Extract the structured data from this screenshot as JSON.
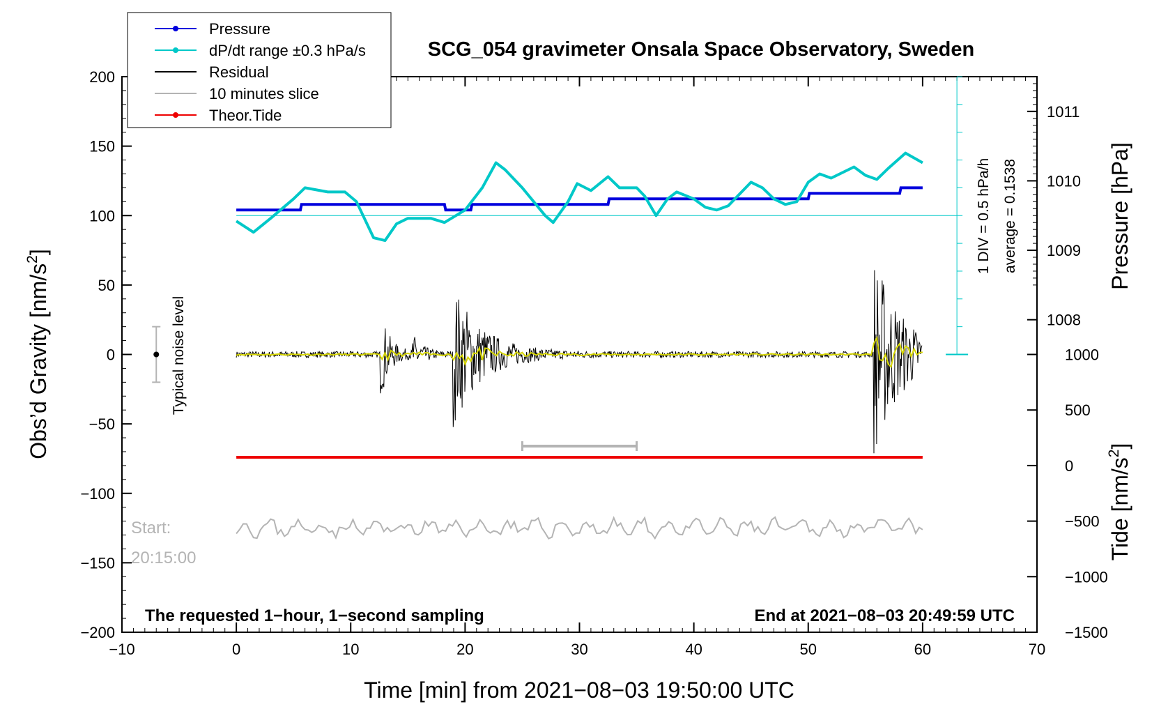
{
  "chart_data": {
    "type": "line",
    "title": "SCG_054 gravimeter Onsala Space Observatory, Sweden",
    "xlabel": "Time [min] from 2021−08−03 19:50:00 UTC",
    "ylabel_main": "Obs’d Gravity [nm/s",
    "ylabel_sup": "2",
    "ylabel_end": "]",
    "ylabel_pressure": "Pressure [hPa]",
    "ylabel_tide": "Tide [nm/s",
    "ylabel_tide_sup": "2",
    "ylabel_tide_end": "]",
    "xlim": [
      -10,
      70
    ],
    "ylim": [
      -200,
      200
    ],
    "x_ticks": [
      "−10",
      "0",
      "10",
      "20",
      "30",
      "40",
      "50",
      "60",
      "70"
    ],
    "x_tick_values": [
      -10,
      0,
      10,
      20,
      30,
      40,
      50,
      60,
      70
    ],
    "y_ticks": [
      "200",
      "150",
      "100",
      "50",
      "0",
      "−50",
      "−100",
      "−150",
      "−200"
    ],
    "y_tick_values": [
      200,
      150,
      100,
      50,
      0,
      -50,
      -100,
      -150,
      -200
    ],
    "pressure_ticks": [
      "1011",
      "1010",
      "1009",
      "1008"
    ],
    "pressure_tick_values": [
      1011,
      1010,
      1009,
      1008
    ],
    "pressure_axis": {
      "value_at_100nm": 1009.5,
      "hpa_per_nm": 0.02
    },
    "tide_ticks": [
      "1000",
      "500",
      "0",
      "−500",
      "−1000",
      "−1500"
    ],
    "tide_tick_values": [
      1000,
      500,
      0,
      -500,
      -1000,
      -1500
    ],
    "tide_axis": {
      "value_at_minus200nm": -1500,
      "nm_per_gravity_nm": 12.5
    },
    "legend": [
      {
        "label": "Pressure",
        "color": "#0000dd",
        "marker": true
      },
      {
        "label": "dP/dt range ±0.3 hPa/s",
        "color": "#00c8c8",
        "marker": true
      },
      {
        "label": "Residual",
        "color": "#000000",
        "marker": false
      },
      {
        "label": "10 minutes slice",
        "color": "#b4b4b4",
        "marker": false
      },
      {
        "label": "Theor.Tide",
        "color": "#ee0000",
        "marker": true
      }
    ],
    "series": [
      {
        "name": "Pressure",
        "color": "#0000dd",
        "points": [
          [
            0,
            104
          ],
          [
            5.6,
            104
          ],
          [
            5.7,
            108
          ],
          [
            18.2,
            108
          ],
          [
            18.3,
            104
          ],
          [
            20.5,
            104
          ],
          [
            20.6,
            108
          ],
          [
            32.5,
            108
          ],
          [
            32.6,
            112
          ],
          [
            50,
            112
          ],
          [
            50.1,
            116
          ],
          [
            58,
            116
          ],
          [
            58.1,
            120
          ],
          [
            60,
            120
          ]
        ]
      },
      {
        "name": "dP/dt",
        "color": "#00c8c8",
        "points": [
          [
            0,
            96
          ],
          [
            1.5,
            88
          ],
          [
            3,
            98
          ],
          [
            5,
            112
          ],
          [
            6,
            120
          ],
          [
            8,
            117
          ],
          [
            9.5,
            117
          ],
          [
            10.5,
            110
          ],
          [
            12,
            84
          ],
          [
            13,
            82
          ],
          [
            14,
            94
          ],
          [
            15,
            98
          ],
          [
            17,
            98
          ],
          [
            18.2,
            95
          ],
          [
            20,
            104
          ],
          [
            21.5,
            120
          ],
          [
            22.7,
            138
          ],
          [
            23.5,
            133
          ],
          [
            25,
            120
          ],
          [
            27,
            100
          ],
          [
            27.7,
            95
          ],
          [
            29,
            110
          ],
          [
            29.8,
            123
          ],
          [
            31,
            118
          ],
          [
            32.5,
            128
          ],
          [
            33.5,
            120
          ],
          [
            35,
            120
          ],
          [
            35.7,
            114
          ],
          [
            36.7,
            100
          ],
          [
            37.7,
            112
          ],
          [
            38.5,
            117
          ],
          [
            40,
            112
          ],
          [
            41,
            106
          ],
          [
            42,
            104
          ],
          [
            43,
            107
          ],
          [
            45,
            124
          ],
          [
            46,
            120
          ],
          [
            47,
            112
          ],
          [
            48,
            108
          ],
          [
            49,
            110
          ],
          [
            50,
            124
          ],
          [
            51,
            130
          ],
          [
            52,
            127
          ],
          [
            54,
            135
          ],
          [
            55,
            129
          ],
          [
            56,
            126
          ],
          [
            57,
            134
          ],
          [
            58.5,
            145
          ],
          [
            60,
            138
          ]
        ]
      },
      {
        "name": "Theor.Tide",
        "color": "#ee0000",
        "values_range": [
          0,
          60
        ],
        "value": -74
      }
    ],
    "typical_noise_level": {
      "label": "Typical noise level",
      "x": -7,
      "center": 0,
      "half_range": 20
    },
    "slice_marker": {
      "x_start": 25,
      "x_end": 35,
      "y": -66
    },
    "pressure_scale": {
      "div_label": "1 DIV = 0.5 hPa/h",
      "average_label": "average = 0.1538",
      "x": 63,
      "y_top": 200,
      "y_bottom": 0
    },
    "start_label": "Start:",
    "start_time": "20:15:00",
    "footer_left": "The requested 1−hour, 1−second sampling",
    "footer_right": "End at 2021−08−03 20:49:59 UTC",
    "residual_bursts": [
      {
        "t": 12.7,
        "amp": 28
      },
      {
        "t": 15.5,
        "amp": 12
      },
      {
        "t": 19,
        "amp": 50
      },
      {
        "t": 55.8,
        "amp": 72
      }
    ]
  }
}
